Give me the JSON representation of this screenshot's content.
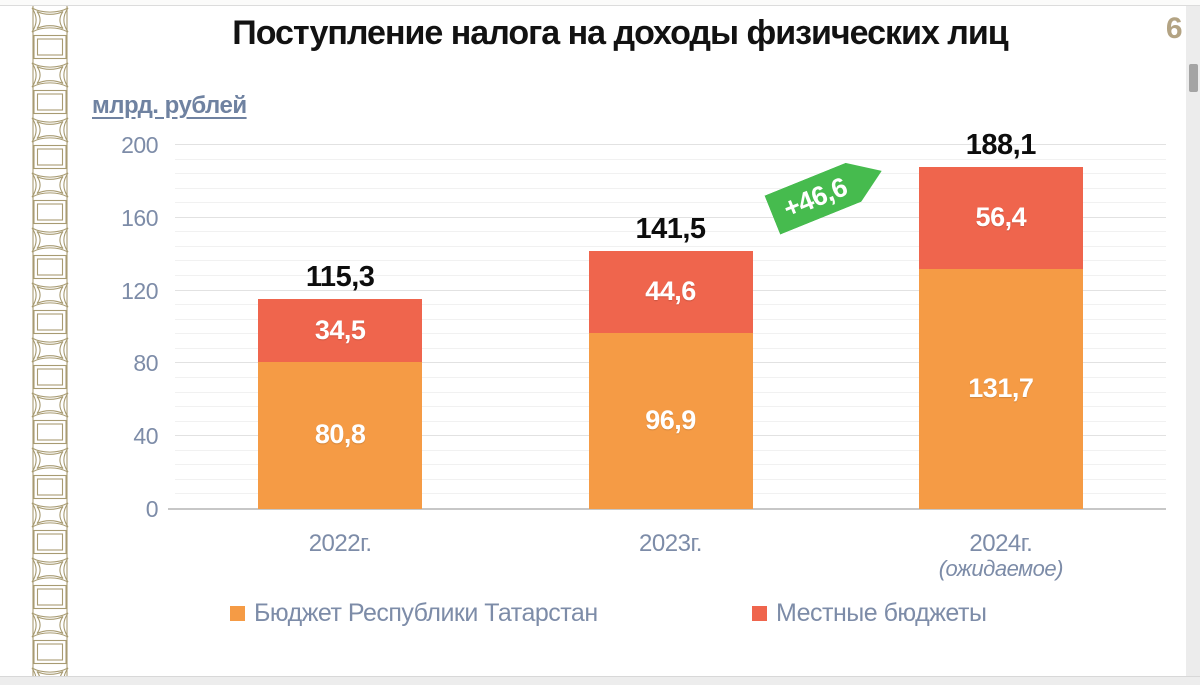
{
  "page": {
    "number": "6"
  },
  "chart_data": {
    "type": "bar",
    "stacked": true,
    "title": "Поступление налога на доходы физических лиц",
    "unit_label": "млрд. рублей",
    "categories": [
      "2022г.",
      "2023г.",
      "2024г."
    ],
    "category_notes": [
      "",
      "",
      "(ожидаемое)"
    ],
    "series": [
      {
        "name": "Бюджет Республики Татарстан",
        "color": "#f59b45",
        "values": [
          80.8,
          96.9,
          131.7
        ],
        "labels": [
          "80,8",
          "96,9",
          "131,7"
        ]
      },
      {
        "name": "Местные бюджеты",
        "color": "#ef654d",
        "values": [
          34.5,
          44.6,
          56.4
        ],
        "labels": [
          "34,5",
          "44,6",
          "56,4"
        ]
      }
    ],
    "totals": {
      "values": [
        115.3,
        141.5,
        188.1
      ],
      "labels": [
        "115,3",
        "141,5",
        "188,1"
      ]
    },
    "annotation": {
      "text": "+46,6",
      "color": "#46bb4e"
    },
    "ylim": [
      0,
      200
    ],
    "yticks": [
      0,
      40,
      80,
      120,
      160,
      200
    ],
    "minor_step": 8,
    "grid": true,
    "legend_position": "bottom"
  }
}
